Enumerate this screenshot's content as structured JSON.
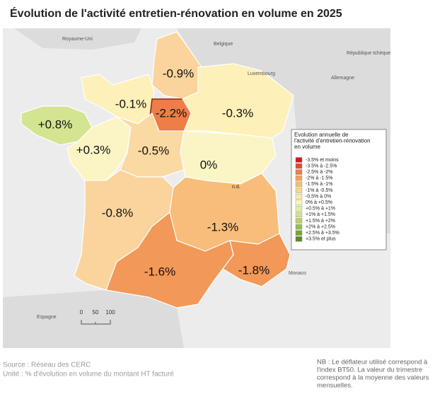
{
  "title": "Évolution de l'activité entretien-rénovation en volume en 2025",
  "map": {
    "regions": [
      {
        "value": "-0.9%",
        "color": "#fad49c"
      },
      {
        "value": "-0.1%",
        "color": "#fdf0b8"
      },
      {
        "value": "-2.2%",
        "color": "#ee7d48"
      },
      {
        "value": "-0.3%",
        "color": "#fdf0b8"
      },
      {
        "value": "+0.8%",
        "color": "#d3e590"
      },
      {
        "value": "+0.3%",
        "color": "#fbf5c6"
      },
      {
        "value": "-0.5%",
        "color": "#fbd9a2"
      },
      {
        "value": "0%",
        "color": "#fbf5c6"
      },
      {
        "value": "-0.8%",
        "color": "#fad49c"
      },
      {
        "value": "-1.3%",
        "color": "#f8bd7a"
      },
      {
        "value": "-1.6%",
        "color": "#f29858"
      },
      {
        "value": "-1.8%",
        "color": "#f29858"
      }
    ],
    "countries": [
      "Royaume-Uni",
      "Belgique",
      "Luxembourg",
      "Allemagne",
      "République tchèque",
      "Monaco",
      "Espagne"
    ],
    "nd": "n.d.",
    "scale": [
      "0",
      "50",
      "100"
    ]
  },
  "legend": {
    "title": [
      "Evolution annuelle de",
      "l'activité d'entretien-rénovation",
      "en volume"
    ],
    "items": [
      {
        "label": "-3.5% et moins",
        "color": "#d7191c"
      },
      {
        "label": "-3.5% à -2.5%",
        "color": "#e34a33"
      },
      {
        "label": "-2.5% à -2%",
        "color": "#ef7b49"
      },
      {
        "label": "-2% à -1.5%",
        "color": "#f5a05a"
      },
      {
        "label": "-1.5% à -1%",
        "color": "#f8bd70"
      },
      {
        "label": "-1% à -0.5%",
        "color": "#fbd38a"
      },
      {
        "label": "-0.5% à 0%",
        "color": "#fde8a6"
      },
      {
        "label": "0% à +0.5%",
        "color": "#fbf5bc"
      },
      {
        "label": "+0.5% à +1%",
        "color": "#e3efa0"
      },
      {
        "label": "+1% à +1.5%",
        "color": "#cfe48a"
      },
      {
        "label": "+1.5% à +2%",
        "color": "#b5d36b"
      },
      {
        "label": "+2% à +2.5%",
        "color": "#95bd4d"
      },
      {
        "label": "+2.5% à +3.5%",
        "color": "#76a535"
      },
      {
        "label": "+3.5% et plus",
        "color": "#5a8a22"
      }
    ]
  },
  "footer": {
    "source": "Source : Réseau des CERC",
    "unit": "Unité : % d'évolution en volume du montant HT facturé",
    "note": [
      "NB : Le déflateur utilisé correspond à",
      "l'index BT50. La valeur du trimestre",
      "correspond à la moyenne des valeurs",
      "mensuelles."
    ]
  }
}
